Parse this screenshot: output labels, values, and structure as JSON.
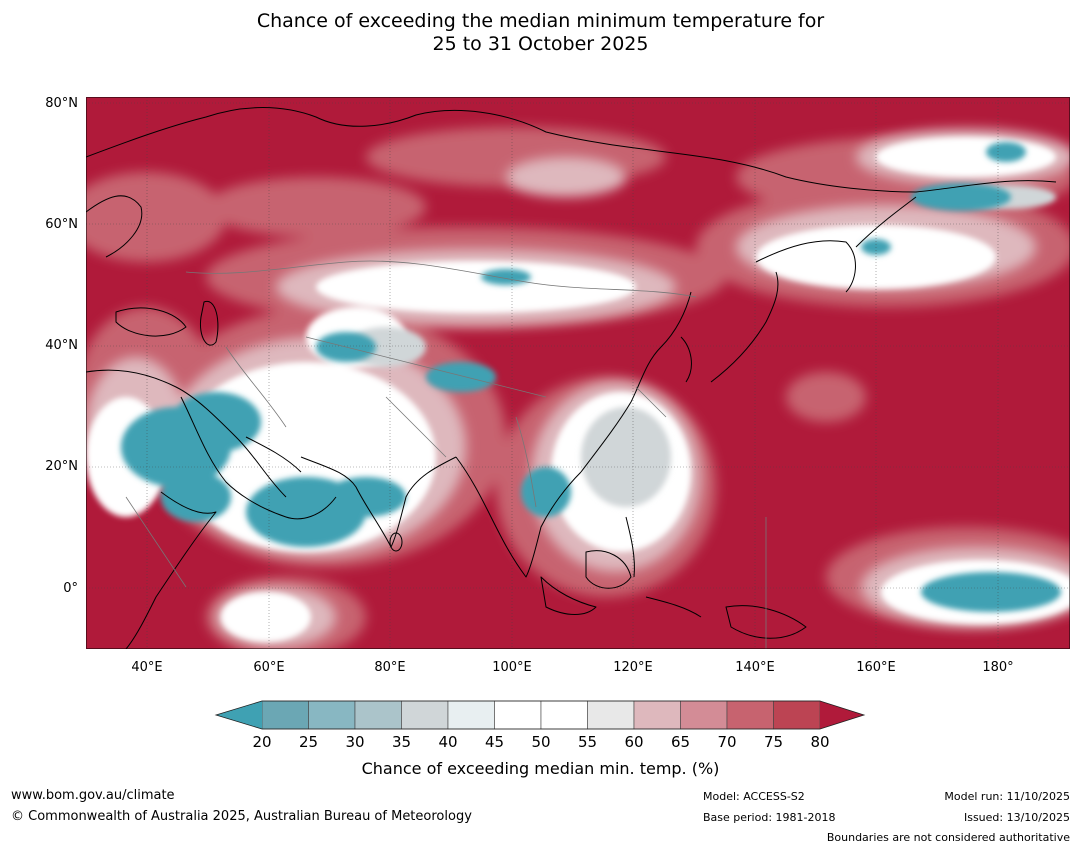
{
  "title": {
    "line1": "Chance of exceeding the median minimum temperature for",
    "line2": "25 to 31 October 2025"
  },
  "map": {
    "lat_labels": [
      "80°N",
      "60°N",
      "40°N",
      "20°N",
      "0°"
    ],
    "lon_labels": [
      "40°E",
      "60°E",
      "80°E",
      "100°E",
      "120°E",
      "140°E",
      "160°E",
      "180°"
    ],
    "extent": {
      "lon": [
        30,
        192
      ],
      "lat": [
        -10,
        81
      ]
    },
    "base_color": "#b01a3a"
  },
  "colorbar": {
    "ticks": [
      "20",
      "25",
      "30",
      "35",
      "40",
      "45",
      "50",
      "55",
      "60",
      "65",
      "70",
      "75",
      "80"
    ],
    "colors": [
      "#6ba7b4",
      "#88b7c2",
      "#abc4ca",
      "#d0d6d8",
      "#e8eff1",
      "#ffffff",
      "#ffffff",
      "#e8e8e8",
      "#deb8bd",
      "#d38c96",
      "#c7636f",
      "#bc4453"
    ],
    "under_color": "#3fa1b3",
    "over_color": "#b01a3a",
    "title": "Chance of exceeding median min. temp. (%)"
  },
  "footer": {
    "url": "www.bom.gov.au/climate",
    "copyright": "© Commonwealth of Australia 2025, Australian Bureau of Meteorology",
    "model": "Model: ACCESS-S2",
    "base_period": "Base period: 1981-2018",
    "model_run": "Model run: 11/10/2025",
    "issued": "Issued: 13/10/2025",
    "disclaimer": "Boundaries are not considered authoritative"
  }
}
